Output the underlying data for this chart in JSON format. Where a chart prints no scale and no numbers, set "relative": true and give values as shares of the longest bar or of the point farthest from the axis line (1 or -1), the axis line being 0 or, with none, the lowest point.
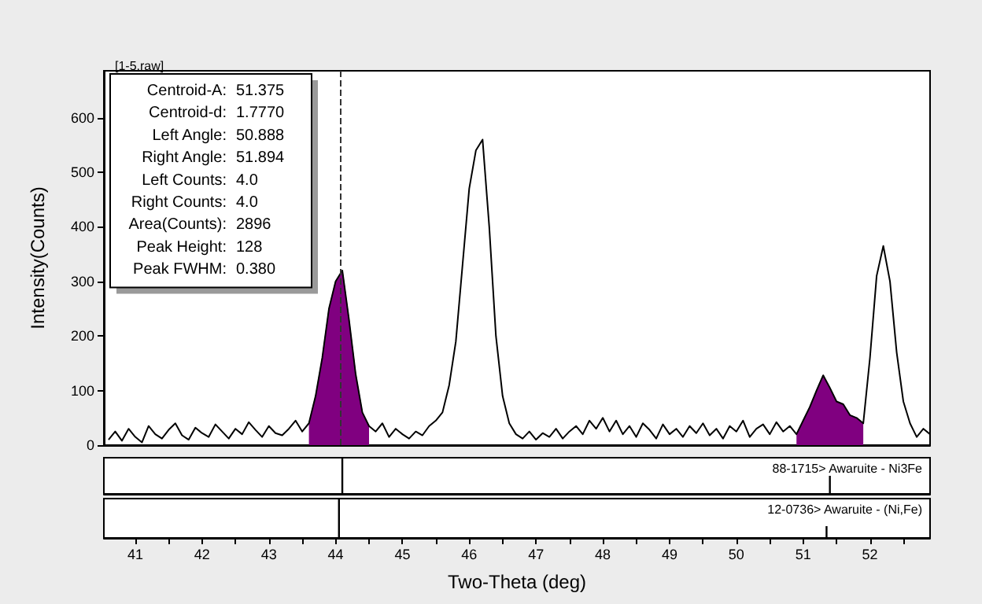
{
  "chart_data": [
    {
      "type": "line",
      "title": "[1-5.raw]",
      "ylabel": "Intensity(Counts)",
      "xlim": [
        40.53,
        52.9
      ],
      "ylim": [
        0,
        686
      ],
      "yticks": [
        0,
        100,
        200,
        300,
        400,
        500,
        600
      ],
      "tick_labels": "y",
      "grid": false,
      "annotations": [
        "Centroid-A: 51.375",
        "Centroid-d: 1.7770",
        "Left Angle: 50.888",
        "Right Angle: 51.894",
        "Left Counts: 4.0",
        "Right Counts: 4.0",
        "Area(Counts): 2896",
        "Peak Height: 128",
        "Peak FWHM: 0.380"
      ],
      "ref_lines": [
        {
          "axis": "x",
          "value": 44.06,
          "color": "#333333",
          "line_style": "dashed"
        }
      ],
      "x": [
        40.6,
        40.7,
        40.8,
        40.9,
        41.0,
        41.1,
        41.2,
        41.3,
        41.4,
        41.5,
        41.6,
        41.7,
        41.8,
        41.9,
        42.0,
        42.1,
        42.2,
        42.3,
        42.4,
        42.5,
        42.6,
        42.7,
        42.8,
        42.9,
        43.0,
        43.1,
        43.2,
        43.3,
        43.4,
        43.5,
        43.6,
        43.7,
        43.8,
        43.9,
        44.0,
        44.1,
        44.2,
        44.3,
        44.4,
        44.5,
        44.6,
        44.7,
        44.8,
        44.9,
        45.0,
        45.1,
        45.2,
        45.3,
        45.4,
        45.5,
        45.6,
        45.7,
        45.8,
        45.9,
        46.0,
        46.1,
        46.2,
        46.3,
        46.4,
        46.5,
        46.6,
        46.7,
        46.8,
        46.9,
        47.0,
        47.1,
        47.2,
        47.3,
        47.4,
        47.5,
        47.6,
        47.7,
        47.8,
        47.9,
        48.0,
        48.1,
        48.2,
        48.3,
        48.4,
        48.5,
        48.6,
        48.7,
        48.8,
        48.9,
        49.0,
        49.1,
        49.2,
        49.3,
        49.4,
        49.5,
        49.6,
        49.7,
        49.8,
        49.9,
        50.0,
        50.1,
        50.2,
        50.3,
        50.4,
        50.5,
        50.6,
        50.7,
        50.8,
        50.9,
        51.0,
        51.1,
        51.2,
        51.3,
        51.4,
        51.5,
        51.6,
        51.7,
        51.8,
        51.9,
        52.0,
        52.1,
        52.2,
        52.3,
        52.4,
        52.5,
        52.6,
        52.7,
        52.8,
        52.9
      ],
      "series": [
        {
          "type": "area",
          "color": "#800080",
          "x": [
            43.6,
            43.7,
            43.8,
            43.9,
            44.0,
            44.1,
            44.2,
            44.3,
            44.4,
            44.5
          ],
          "values": [
            40,
            90,
            160,
            250,
            300,
            320,
            230,
            130,
            60,
            35
          ]
        },
        {
          "type": "area",
          "color": "#800080",
          "x": [
            50.9,
            51.0,
            51.1,
            51.2,
            51.3,
            51.4,
            51.5,
            51.6,
            51.7,
            51.8,
            51.9
          ],
          "values": [
            20,
            45,
            70,
            100,
            128,
            105,
            80,
            75,
            55,
            50,
            40
          ]
        },
        {
          "type": "line",
          "color": "#000000",
          "values": [
            10,
            25,
            8,
            30,
            15,
            5,
            35,
            20,
            12,
            28,
            40,
            18,
            10,
            32,
            22,
            15,
            38,
            25,
            12,
            30,
            20,
            42,
            28,
            15,
            35,
            22,
            18,
            30,
            45,
            25,
            40,
            90,
            160,
            250,
            300,
            320,
            230,
            130,
            60,
            35,
            25,
            40,
            15,
            30,
            20,
            12,
            25,
            18,
            35,
            45,
            60,
            110,
            190,
            330,
            470,
            540,
            560,
            400,
            200,
            90,
            40,
            20,
            12,
            25,
            10,
            22,
            15,
            30,
            12,
            25,
            35,
            20,
            45,
            30,
            50,
            25,
            45,
            20,
            35,
            15,
            40,
            28,
            12,
            38,
            20,
            30,
            15,
            35,
            22,
            40,
            18,
            30,
            12,
            35,
            25,
            45,
            15,
            30,
            38,
            20,
            42,
            25,
            35,
            20,
            45,
            70,
            100,
            128,
            105,
            80,
            75,
            55,
            50,
            40,
            160,
            310,
            365,
            300,
            170,
            80,
            40,
            15,
            30,
            20
          ]
        }
      ]
    },
    {
      "type": "bar",
      "relative": true,
      "xlim": [
        40.53,
        52.9
      ],
      "tick_labels": false,
      "annotations": [
        "88-1715> Awaruite - Ni3Fe"
      ],
      "x": [
        44.1,
        51.4
      ],
      "values": [
        1,
        0.5
      ],
      "color": "#000000"
    },
    {
      "type": "bar",
      "relative": true,
      "xlim": [
        40.53,
        52.9
      ],
      "tick_labels": "x",
      "xlabel": "Two-Theta (deg)",
      "annotations": [
        "12-0736> Awaruite - (Ni,Fe)"
      ],
      "x": [
        44.05,
        51.35
      ],
      "values": [
        1,
        0.3
      ],
      "color": "#000000",
      "xticks": [
        41,
        {
          "value": 41.5,
          "label": null
        },
        42,
        {
          "value": 42.5,
          "label": null
        },
        43,
        {
          "value": 43.5,
          "label": null
        },
        44,
        {
          "value": 44.5,
          "label": null
        },
        45,
        {
          "value": 45.5,
          "label": null
        },
        46,
        {
          "value": 46.5,
          "label": null
        },
        47,
        {
          "value": 47.5,
          "label": null
        },
        48,
        {
          "value": 48.5,
          "label": null
        },
        49,
        {
          "value": 49.5,
          "label": null
        },
        50,
        {
          "value": 50.5,
          "label": null
        },
        51,
        {
          "value": 51.5,
          "label": null
        },
        52,
        {
          "value": 52.5,
          "label": null
        }
      ]
    }
  ]
}
